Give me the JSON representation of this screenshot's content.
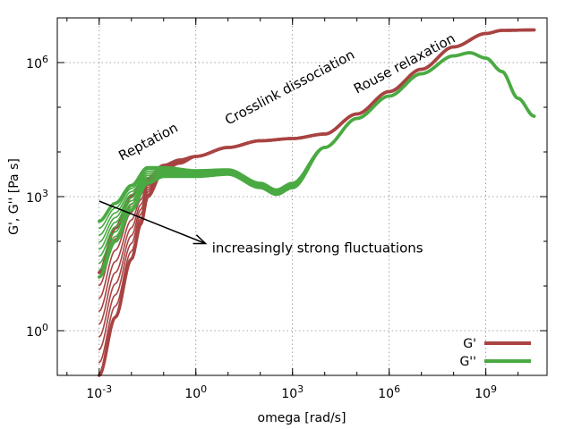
{
  "chart_data": {
    "type": "line",
    "xlabel": "omega [rad/s]",
    "ylabel": "G', G'' [Pa s]",
    "xscale": "log",
    "yscale": "log",
    "xlim_log10": [
      -4.3,
      10.9
    ],
    "ylim_log10": [
      -1.0,
      7.0
    ],
    "xticks": [
      {
        "value_log10": -3,
        "base": "10",
        "exp": "-3"
      },
      {
        "value_log10": 0,
        "base": "10",
        "exp": "0"
      },
      {
        "value_log10": 3,
        "base": "10",
        "exp": "3"
      },
      {
        "value_log10": 6,
        "base": "10",
        "exp": "6"
      },
      {
        "value_log10": 9,
        "base": "10",
        "exp": "9"
      }
    ],
    "yticks": [
      {
        "value_log10": 0,
        "base": "10",
        "exp": "0"
      },
      {
        "value_log10": 3,
        "base": "10",
        "exp": "3"
      },
      {
        "value_log10": 6,
        "base": "10",
        "exp": "6"
      }
    ],
    "grid": true,
    "legend_position": "bottom-right",
    "legend": [
      {
        "label": "G'",
        "color": "#a84342"
      },
      {
        "label": "G''",
        "color": "#4aaa42"
      }
    ],
    "annotations": [
      {
        "text": "Reptation",
        "at_log10": [
          -2.3,
          3.8
        ],
        "angle": -28
      },
      {
        "text": "Crosslink dissociation",
        "at_log10": [
          1.0,
          4.6
        ],
        "angle": -28
      },
      {
        "text": "Rouse relaxation",
        "at_log10": [
          5.0,
          5.3
        ],
        "angle": -28
      },
      {
        "text": "increasingly strong fluctuations",
        "at_log10": [
          0.5,
          1.75
        ],
        "angle": 0
      }
    ],
    "arrow": {
      "from_log10": [
        -3.0,
        2.9
      ],
      "to_log10": [
        0.3,
        1.95
      ]
    },
    "colors": {
      "g_prime": "#a84342",
      "g_double_prime": "#4aaa42"
    },
    "family_count": 9,
    "series": [
      {
        "name": "G'",
        "role": "primary",
        "x": [
          -3.0,
          -2.5,
          -2.0,
          -1.7,
          -1.5,
          -1.0,
          0.0,
          1.0,
          2.0,
          3.0,
          4.0,
          5.0,
          6.0,
          7.0,
          8.0,
          9.0,
          9.5,
          10.5
        ],
        "y": [
          -1.0,
          0.3,
          1.6,
          2.4,
          3.0,
          3.6,
          3.9,
          4.1,
          4.25,
          4.3,
          4.4,
          4.85,
          5.35,
          5.85,
          6.35,
          6.65,
          6.72,
          6.73
        ]
      },
      {
        "name": "G'",
        "role": "family-end",
        "x": [
          -3.0,
          -2.5,
          -2.0,
          -1.5,
          -1.0,
          -0.5,
          0.0,
          1.0,
          2.0,
          3.0,
          4.0
        ],
        "y": [
          1.3,
          2.3,
          3.0,
          3.4,
          3.7,
          3.82,
          3.9,
          4.1,
          4.25,
          4.3,
          4.4
        ]
      },
      {
        "name": "G''",
        "role": "primary",
        "x": [
          -3.0,
          -2.5,
          -2.0,
          -1.5,
          -1.0,
          0.0,
          1.0,
          2.0,
          2.5,
          3.0,
          4.0,
          5.0,
          6.0,
          7.0,
          8.0,
          8.5,
          9.0,
          9.5,
          10.0,
          10.5
        ],
        "y": [
          1.2,
          2.0,
          2.7,
          3.3,
          3.45,
          3.45,
          3.5,
          3.2,
          3.05,
          3.2,
          4.1,
          4.75,
          5.25,
          5.75,
          6.15,
          6.22,
          6.1,
          5.8,
          5.2,
          4.8
        ]
      },
      {
        "name": "G''",
        "role": "family-end",
        "x": [
          -3.0,
          -2.5,
          -2.0,
          -1.5,
          -1.0,
          0.0,
          1.0,
          2.0,
          2.5,
          3.0,
          4.0
        ],
        "y": [
          2.45,
          2.85,
          3.25,
          3.65,
          3.65,
          3.58,
          3.6,
          3.3,
          3.15,
          3.3,
          4.1
        ]
      }
    ]
  }
}
